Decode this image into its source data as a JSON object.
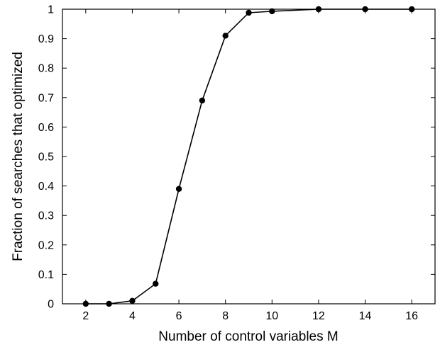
{
  "chart_data": {
    "type": "line",
    "title": "",
    "xlabel": "Number of control variables M",
    "ylabel": "Fraction of searches that optimized",
    "xlim": [
      1,
      17
    ],
    "ylim": [
      0,
      1
    ],
    "xticks": [
      2,
      4,
      6,
      8,
      10,
      12,
      14,
      16
    ],
    "yticks": [
      0,
      0.1,
      0.2,
      0.3,
      0.4,
      0.5,
      0.6,
      0.7,
      0.8,
      0.9,
      1
    ],
    "grid": false,
    "legend": "none",
    "series": [
      {
        "x": [
          2,
          3,
          4,
          5,
          6,
          7,
          8,
          9,
          10,
          12,
          14,
          16
        ],
        "y": [
          0,
          0,
          0.01,
          0.068,
          0.39,
          0.69,
          0.91,
          0.988,
          0.993,
          1,
          1,
          1
        ],
        "color": "#000000",
        "marker": "circle"
      }
    ]
  }
}
